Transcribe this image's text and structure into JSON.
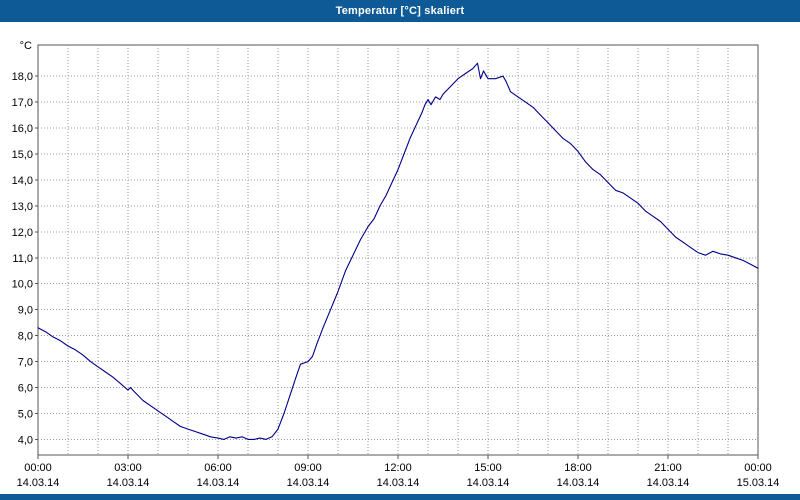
{
  "window": {
    "title": "Temperatur [°C] skaliert"
  },
  "colors": {
    "titlebar_bg": "#0e5a96",
    "titlebar_text": "#ffffff",
    "line": "#00008b",
    "grid": "#9a9a9a",
    "frame": "#555555",
    "plot_bg": "#ffffff"
  },
  "chart_data": {
    "type": "line",
    "title": "Temperatur [°C] skaliert",
    "unit_label": "°C",
    "xlabel": "",
    "ylabel": "°C",
    "xlim": [
      0,
      24
    ],
    "ylim": [
      3.4,
      19.2
    ],
    "grid": "dotted; vertical every hour, horizontal every 1.0 °C",
    "legend": "none",
    "y_ticks": [
      4,
      5,
      6,
      7,
      8,
      9,
      10,
      11,
      12,
      13,
      14,
      15,
      16,
      17,
      18
    ],
    "y_tick_labels": [
      "4,0",
      "5,0",
      "6,0",
      "7,0",
      "8,0",
      "9,0",
      "10,0",
      "11,0",
      "12,0",
      "13,0",
      "14,0",
      "15,0",
      "16,0",
      "17,0",
      "18,0"
    ],
    "x_major_ticks_hours": [
      0,
      3,
      6,
      9,
      12,
      15,
      18,
      21,
      24
    ],
    "x_tick_time_labels": [
      "00:00",
      "03:00",
      "06:00",
      "09:00",
      "12:00",
      "15:00",
      "18:00",
      "21:00",
      "00:00"
    ],
    "x_tick_date_labels": [
      "14.03.14",
      "14.03.14",
      "14.03.14",
      "14.03.14",
      "14.03.14",
      "14.03.14",
      "14.03.14",
      "14.03.14",
      "15.03.14"
    ],
    "series": [
      {
        "name": "Temperatur",
        "color": "#00008b",
        "points": [
          [
            0.0,
            8.3
          ],
          [
            0.25,
            8.15
          ],
          [
            0.5,
            7.95
          ],
          [
            0.75,
            7.8
          ],
          [
            1.0,
            7.6
          ],
          [
            1.25,
            7.45
          ],
          [
            1.5,
            7.25
          ],
          [
            1.75,
            7.0
          ],
          [
            2.0,
            6.8
          ],
          [
            2.25,
            6.6
          ],
          [
            2.5,
            6.4
          ],
          [
            2.75,
            6.15
          ],
          [
            3.0,
            5.9
          ],
          [
            3.08,
            6.0
          ],
          [
            3.2,
            5.85
          ],
          [
            3.5,
            5.5
          ],
          [
            3.75,
            5.3
          ],
          [
            4.0,
            5.1
          ],
          [
            4.25,
            4.9
          ],
          [
            4.5,
            4.7
          ],
          [
            4.75,
            4.5
          ],
          [
            5.0,
            4.4
          ],
          [
            5.25,
            4.3
          ],
          [
            5.5,
            4.2
          ],
          [
            5.75,
            4.1
          ],
          [
            6.0,
            4.05
          ],
          [
            6.2,
            4.0
          ],
          [
            6.4,
            4.1
          ],
          [
            6.6,
            4.05
          ],
          [
            6.8,
            4.1
          ],
          [
            7.0,
            4.0
          ],
          [
            7.2,
            4.0
          ],
          [
            7.4,
            4.05
          ],
          [
            7.6,
            4.0
          ],
          [
            7.8,
            4.1
          ],
          [
            8.0,
            4.4
          ],
          [
            8.2,
            5.0
          ],
          [
            8.4,
            5.7
          ],
          [
            8.6,
            6.4
          ],
          [
            8.75,
            6.9
          ],
          [
            9.0,
            7.0
          ],
          [
            9.15,
            7.2
          ],
          [
            9.3,
            7.7
          ],
          [
            9.5,
            8.3
          ],
          [
            9.75,
            9.0
          ],
          [
            10.0,
            9.7
          ],
          [
            10.25,
            10.5
          ],
          [
            10.5,
            11.1
          ],
          [
            10.75,
            11.7
          ],
          [
            11.0,
            12.2
          ],
          [
            11.2,
            12.5
          ],
          [
            11.4,
            13.0
          ],
          [
            11.6,
            13.4
          ],
          [
            11.8,
            13.9
          ],
          [
            12.0,
            14.4
          ],
          [
            12.2,
            15.0
          ],
          [
            12.4,
            15.6
          ],
          [
            12.6,
            16.1
          ],
          [
            12.8,
            16.6
          ],
          [
            12.9,
            16.9
          ],
          [
            13.0,
            17.1
          ],
          [
            13.1,
            16.9
          ],
          [
            13.25,
            17.2
          ],
          [
            13.4,
            17.1
          ],
          [
            13.5,
            17.3
          ],
          [
            13.75,
            17.6
          ],
          [
            14.0,
            17.9
          ],
          [
            14.25,
            18.1
          ],
          [
            14.5,
            18.3
          ],
          [
            14.65,
            18.5
          ],
          [
            14.75,
            17.9
          ],
          [
            14.85,
            18.2
          ],
          [
            15.0,
            17.9
          ],
          [
            15.25,
            17.9
          ],
          [
            15.5,
            18.0
          ],
          [
            15.6,
            17.8
          ],
          [
            15.75,
            17.4
          ],
          [
            16.0,
            17.2
          ],
          [
            16.25,
            17.0
          ],
          [
            16.5,
            16.8
          ],
          [
            16.75,
            16.5
          ],
          [
            17.0,
            16.2
          ],
          [
            17.25,
            15.9
          ],
          [
            17.5,
            15.6
          ],
          [
            17.75,
            15.4
          ],
          [
            18.0,
            15.1
          ],
          [
            18.25,
            14.7
          ],
          [
            18.5,
            14.4
          ],
          [
            18.75,
            14.2
          ],
          [
            19.0,
            13.9
          ],
          [
            19.25,
            13.6
          ],
          [
            19.5,
            13.5
          ],
          [
            19.75,
            13.3
          ],
          [
            20.0,
            13.1
          ],
          [
            20.25,
            12.8
          ],
          [
            20.5,
            12.6
          ],
          [
            20.75,
            12.4
          ],
          [
            21.0,
            12.1
          ],
          [
            21.25,
            11.8
          ],
          [
            21.5,
            11.6
          ],
          [
            21.75,
            11.4
          ],
          [
            22.0,
            11.2
          ],
          [
            22.25,
            11.1
          ],
          [
            22.5,
            11.25
          ],
          [
            22.75,
            11.15
          ],
          [
            23.0,
            11.1
          ],
          [
            23.25,
            11.0
          ],
          [
            23.5,
            10.9
          ],
          [
            23.75,
            10.75
          ],
          [
            24.0,
            10.6
          ]
        ]
      }
    ]
  }
}
